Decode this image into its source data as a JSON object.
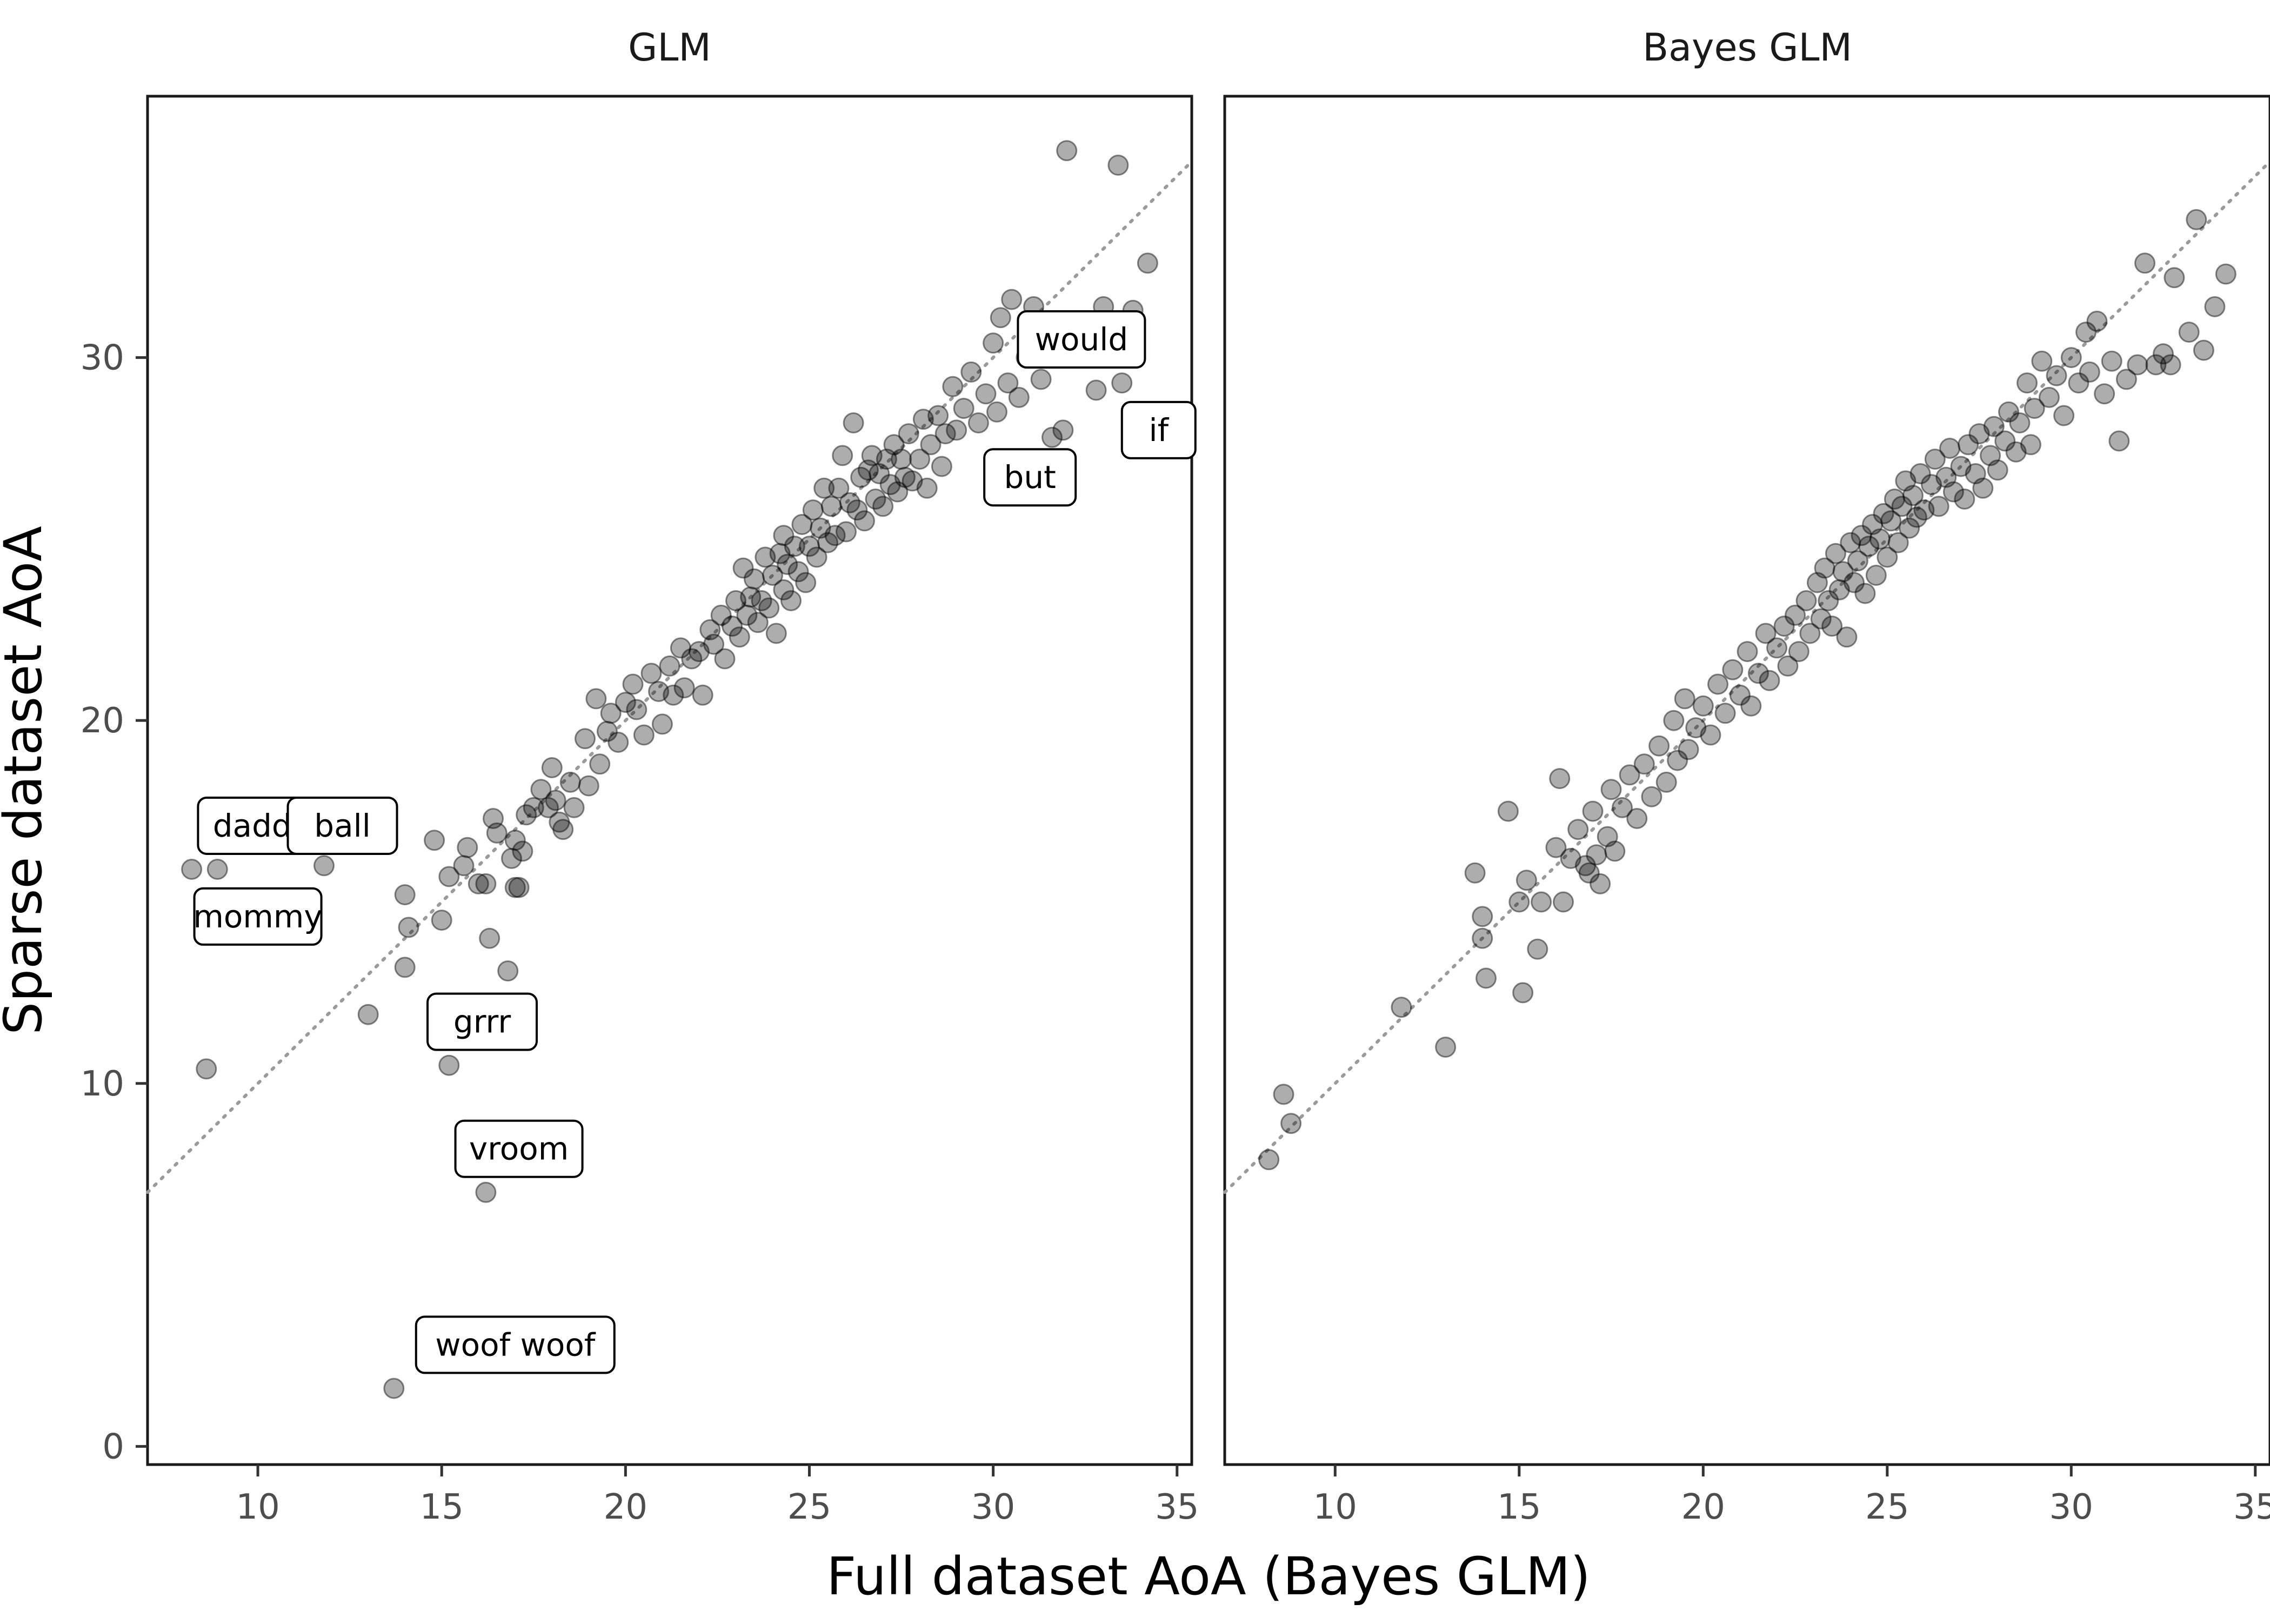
{
  "chart_data": {
    "type": "scatter",
    "xlabel": "Full dataset AoA (Bayes GLM)",
    "ylabel": "Sparse dataset AoA",
    "xlim": [
      7,
      35.4
    ],
    "ylim": [
      -0.5,
      37.2
    ],
    "x_ticks": [
      10,
      15,
      20,
      25,
      30,
      35
    ],
    "y_ticks": [
      0,
      10,
      20,
      30
    ],
    "reference_line": "y = x",
    "grid": false,
    "panels": [
      {
        "title": "GLM",
        "points": [
          [
            8.6,
            10.4
          ],
          [
            8.2,
            15.9
          ],
          [
            8.9,
            15.9
          ],
          [
            11.8,
            16.0
          ],
          [
            13.0,
            11.9
          ],
          [
            13.7,
            1.6
          ],
          [
            14.0,
            13.2
          ],
          [
            14.1,
            14.3
          ],
          [
            14.0,
            15.2
          ],
          [
            14.8,
            16.7
          ],
          [
            15.0,
            14.5
          ],
          [
            15.2,
            15.7
          ],
          [
            15.2,
            10.5
          ],
          [
            15.6,
            16.0
          ],
          [
            15.7,
            16.5
          ],
          [
            16.0,
            15.5
          ],
          [
            16.2,
            15.5
          ],
          [
            16.2,
            7.0
          ],
          [
            16.3,
            14.0
          ],
          [
            16.4,
            17.3
          ],
          [
            16.5,
            16.9
          ],
          [
            16.8,
            13.1
          ],
          [
            16.9,
            16.2
          ],
          [
            17.0,
            15.4
          ],
          [
            17.0,
            16.7
          ],
          [
            17.1,
            15.4
          ],
          [
            17.2,
            16.4
          ],
          [
            17.3,
            17.4
          ],
          [
            17.5,
            17.6
          ],
          [
            17.7,
            18.1
          ],
          [
            17.9,
            17.6
          ],
          [
            18.0,
            18.7
          ],
          [
            18.1,
            17.8
          ],
          [
            18.2,
            17.2
          ],
          [
            18.3,
            17.0
          ],
          [
            18.5,
            18.3
          ],
          [
            18.6,
            17.6
          ],
          [
            18.9,
            19.5
          ],
          [
            19.0,
            18.2
          ],
          [
            19.2,
            20.6
          ],
          [
            19.3,
            18.8
          ],
          [
            19.5,
            19.7
          ],
          [
            19.6,
            20.2
          ],
          [
            19.8,
            19.4
          ],
          [
            20.0,
            20.5
          ],
          [
            20.2,
            21.0
          ],
          [
            20.3,
            20.3
          ],
          [
            20.5,
            19.6
          ],
          [
            20.7,
            21.3
          ],
          [
            20.9,
            20.8
          ],
          [
            21.0,
            19.9
          ],
          [
            21.2,
            21.5
          ],
          [
            21.3,
            20.7
          ],
          [
            21.5,
            22.0
          ],
          [
            21.6,
            20.9
          ],
          [
            21.8,
            21.7
          ],
          [
            22.0,
            21.9
          ],
          [
            22.1,
            20.7
          ],
          [
            22.3,
            22.5
          ],
          [
            22.4,
            22.1
          ],
          [
            22.6,
            22.9
          ],
          [
            22.7,
            21.7
          ],
          [
            22.9,
            22.6
          ],
          [
            23.0,
            23.3
          ],
          [
            23.1,
            22.3
          ],
          [
            23.2,
            24.2
          ],
          [
            23.3,
            22.9
          ],
          [
            23.4,
            23.4
          ],
          [
            23.5,
            23.9
          ],
          [
            23.6,
            22.7
          ],
          [
            23.7,
            23.3
          ],
          [
            23.8,
            24.5
          ],
          [
            23.9,
            23.1
          ],
          [
            24.0,
            24.0
          ],
          [
            24.1,
            22.4
          ],
          [
            24.2,
            24.6
          ],
          [
            24.3,
            23.6
          ],
          [
            24.3,
            25.1
          ],
          [
            24.4,
            24.3
          ],
          [
            24.5,
            23.3
          ],
          [
            24.6,
            24.8
          ],
          [
            24.7,
            24.1
          ],
          [
            24.8,
            25.4
          ],
          [
            24.9,
            23.8
          ],
          [
            25.0,
            24.8
          ],
          [
            25.1,
            25.8
          ],
          [
            25.2,
            24.5
          ],
          [
            25.3,
            25.3
          ],
          [
            25.4,
            26.4
          ],
          [
            25.5,
            24.9
          ],
          [
            25.6,
            25.9
          ],
          [
            25.7,
            25.1
          ],
          [
            25.8,
            26.4
          ],
          [
            25.9,
            27.3
          ],
          [
            26.0,
            25.2
          ],
          [
            26.1,
            26.0
          ],
          [
            26.2,
            28.2
          ],
          [
            26.3,
            25.8
          ],
          [
            26.4,
            26.7
          ],
          [
            26.5,
            25.5
          ],
          [
            26.6,
            26.9
          ],
          [
            26.7,
            27.3
          ],
          [
            26.8,
            26.1
          ],
          [
            26.9,
            26.8
          ],
          [
            27.0,
            25.9
          ],
          [
            27.1,
            27.2
          ],
          [
            27.2,
            26.5
          ],
          [
            27.3,
            27.6
          ],
          [
            27.4,
            26.3
          ],
          [
            27.5,
            27.2
          ],
          [
            27.6,
            26.7
          ],
          [
            27.7,
            27.9
          ],
          [
            27.8,
            26.6
          ],
          [
            28.0,
            27.2
          ],
          [
            28.1,
            28.3
          ],
          [
            28.2,
            26.4
          ],
          [
            28.3,
            27.6
          ],
          [
            28.5,
            28.4
          ],
          [
            28.6,
            27.0
          ],
          [
            28.7,
            27.9
          ],
          [
            28.9,
            29.2
          ],
          [
            29.0,
            28.0
          ],
          [
            29.2,
            28.6
          ],
          [
            29.4,
            29.6
          ],
          [
            29.6,
            28.2
          ],
          [
            29.8,
            29.0
          ],
          [
            30.0,
            30.4
          ],
          [
            30.1,
            28.5
          ],
          [
            30.2,
            31.1
          ],
          [
            30.4,
            29.3
          ],
          [
            30.5,
            31.6
          ],
          [
            30.7,
            28.9
          ],
          [
            30.9,
            30.0
          ],
          [
            31.1,
            31.4
          ],
          [
            31.3,
            29.4
          ],
          [
            31.6,
            27.8
          ],
          [
            31.9,
            28.0
          ],
          [
            32.0,
            35.7
          ],
          [
            32.4,
            30.8
          ],
          [
            32.8,
            29.1
          ],
          [
            33.0,
            31.4
          ],
          [
            33.4,
            35.3
          ],
          [
            33.5,
            29.3
          ],
          [
            33.8,
            31.3
          ],
          [
            34.2,
            32.6
          ]
        ],
        "labels": [
          {
            "text": "daddy",
            "x": 10.1,
            "y": 17.1
          },
          {
            "text": "ball",
            "x": 12.3,
            "y": 17.1
          },
          {
            "text": "mommy",
            "x": 10.0,
            "y": 14.6
          },
          {
            "text": "grrr",
            "x": 16.1,
            "y": 11.7
          },
          {
            "text": "vroom",
            "x": 17.1,
            "y": 8.2
          },
          {
            "text": "woof woof",
            "x": 17.0,
            "y": 2.8
          },
          {
            "text": "would",
            "x": 32.4,
            "y": 30.5
          },
          {
            "text": "if",
            "x": 34.5,
            "y": 28.0
          },
          {
            "text": "but",
            "x": 31.0,
            "y": 26.7
          }
        ]
      },
      {
        "title": "Bayes GLM",
        "points": [
          [
            8.2,
            7.9
          ],
          [
            8.6,
            9.7
          ],
          [
            8.8,
            8.9
          ],
          [
            11.8,
            12.1
          ],
          [
            13.0,
            11.0
          ],
          [
            13.8,
            15.8
          ],
          [
            14.0,
            14.6
          ],
          [
            14.0,
            14.0
          ],
          [
            14.1,
            12.9
          ],
          [
            14.7,
            17.5
          ],
          [
            15.0,
            15.0
          ],
          [
            15.1,
            12.5
          ],
          [
            15.2,
            15.6
          ],
          [
            15.5,
            13.7
          ],
          [
            15.6,
            15.0
          ],
          [
            16.0,
            16.5
          ],
          [
            16.1,
            18.4
          ],
          [
            16.2,
            15.0
          ],
          [
            16.4,
            16.2
          ],
          [
            16.6,
            17.0
          ],
          [
            16.8,
            16.0
          ],
          [
            16.9,
            15.8
          ],
          [
            17.0,
            17.5
          ],
          [
            17.1,
            16.3
          ],
          [
            17.2,
            15.5
          ],
          [
            17.4,
            16.8
          ],
          [
            17.5,
            18.1
          ],
          [
            17.6,
            16.4
          ],
          [
            17.8,
            17.6
          ],
          [
            18.0,
            18.5
          ],
          [
            18.2,
            17.3
          ],
          [
            18.4,
            18.8
          ],
          [
            18.6,
            17.9
          ],
          [
            18.8,
            19.3
          ],
          [
            19.0,
            18.3
          ],
          [
            19.2,
            20.0
          ],
          [
            19.3,
            18.9
          ],
          [
            19.5,
            20.6
          ],
          [
            19.6,
            19.2
          ],
          [
            19.8,
            19.8
          ],
          [
            20.0,
            20.4
          ],
          [
            20.2,
            19.6
          ],
          [
            20.4,
            21.0
          ],
          [
            20.6,
            20.2
          ],
          [
            20.8,
            21.4
          ],
          [
            21.0,
            20.7
          ],
          [
            21.2,
            21.9
          ],
          [
            21.3,
            20.4
          ],
          [
            21.5,
            21.3
          ],
          [
            21.7,
            22.4
          ],
          [
            21.8,
            21.1
          ],
          [
            22.0,
            22.0
          ],
          [
            22.2,
            22.6
          ],
          [
            22.3,
            21.5
          ],
          [
            22.5,
            22.9
          ],
          [
            22.6,
            21.9
          ],
          [
            22.8,
            23.3
          ],
          [
            22.9,
            22.4
          ],
          [
            23.1,
            23.8
          ],
          [
            23.2,
            22.8
          ],
          [
            23.3,
            24.2
          ],
          [
            23.4,
            23.3
          ],
          [
            23.5,
            22.6
          ],
          [
            23.6,
            24.6
          ],
          [
            23.7,
            23.6
          ],
          [
            23.8,
            24.1
          ],
          [
            23.9,
            22.3
          ],
          [
            24.0,
            24.9
          ],
          [
            24.1,
            23.8
          ],
          [
            24.2,
            24.4
          ],
          [
            24.3,
            25.1
          ],
          [
            24.4,
            23.5
          ],
          [
            24.5,
            24.8
          ],
          [
            24.6,
            25.4
          ],
          [
            24.7,
            24.0
          ],
          [
            24.8,
            25.0
          ],
          [
            24.9,
            25.7
          ],
          [
            25.0,
            24.5
          ],
          [
            25.1,
            25.5
          ],
          [
            25.2,
            26.1
          ],
          [
            25.3,
            24.9
          ],
          [
            25.4,
            25.9
          ],
          [
            25.5,
            26.6
          ],
          [
            25.6,
            25.3
          ],
          [
            25.7,
            26.2
          ],
          [
            25.8,
            25.6
          ],
          [
            25.9,
            26.8
          ],
          [
            26.0,
            25.8
          ],
          [
            26.2,
            26.5
          ],
          [
            26.3,
            27.2
          ],
          [
            26.4,
            25.9
          ],
          [
            26.6,
            26.7
          ],
          [
            26.7,
            27.5
          ],
          [
            26.8,
            26.3
          ],
          [
            27.0,
            27.0
          ],
          [
            27.1,
            26.1
          ],
          [
            27.2,
            27.6
          ],
          [
            27.4,
            26.8
          ],
          [
            27.5,
            27.9
          ],
          [
            27.6,
            26.4
          ],
          [
            27.8,
            27.3
          ],
          [
            27.9,
            28.1
          ],
          [
            28.0,
            26.9
          ],
          [
            28.2,
            27.7
          ],
          [
            28.3,
            28.5
          ],
          [
            28.5,
            27.4
          ],
          [
            28.6,
            28.2
          ],
          [
            28.8,
            29.3
          ],
          [
            28.9,
            27.6
          ],
          [
            29.0,
            28.6
          ],
          [
            29.2,
            29.9
          ],
          [
            29.4,
            28.9
          ],
          [
            29.6,
            29.5
          ],
          [
            29.8,
            28.4
          ],
          [
            30.0,
            30.0
          ],
          [
            30.2,
            29.3
          ],
          [
            30.4,
            30.7
          ],
          [
            30.5,
            29.6
          ],
          [
            30.7,
            31.0
          ],
          [
            30.9,
            29.0
          ],
          [
            31.1,
            29.9
          ],
          [
            31.3,
            27.7
          ],
          [
            31.5,
            29.4
          ],
          [
            31.8,
            29.8
          ],
          [
            32.0,
            32.6
          ],
          [
            32.3,
            29.8
          ],
          [
            32.5,
            30.1
          ],
          [
            32.7,
            29.8
          ],
          [
            32.8,
            32.2
          ],
          [
            33.2,
            30.7
          ],
          [
            33.4,
            33.8
          ],
          [
            33.6,
            30.2
          ],
          [
            33.9,
            31.4
          ],
          [
            34.2,
            32.3
          ]
        ],
        "labels": []
      }
    ]
  }
}
